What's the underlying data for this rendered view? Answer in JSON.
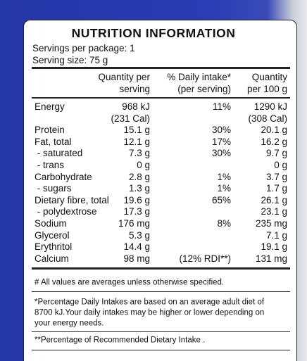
{
  "header": {
    "title": "NUTRITION INFORMATION",
    "servings_per_package": "Servings per package: 1",
    "serving_size": "Serving size: 75 g"
  },
  "table": {
    "columns": [
      [
        "Quantity per",
        "serving"
      ],
      [
        "% Daily intake*",
        "(per serving)"
      ],
      [
        "Quantity",
        "per 100 g"
      ]
    ],
    "rows": [
      {
        "name": "Energy",
        "serving": [
          "968 kJ",
          "(231 Cal)"
        ],
        "daily": "11%",
        "per100": [
          "1290 kJ",
          "(308 Cal)"
        ]
      },
      {
        "name": "Protein",
        "serving": [
          "15.1 g"
        ],
        "daily": "30%",
        "per100": [
          "20.1 g"
        ]
      },
      {
        "name": "Fat, total",
        "serving": [
          "12.1 g"
        ],
        "daily": "17%",
        "per100": [
          "16.2 g"
        ]
      },
      {
        "name": " - saturated",
        "serving": [
          "7.3 g"
        ],
        "daily": "30%",
        "per100": [
          "9.7 g"
        ]
      },
      {
        "name": " - trans",
        "serving": [
          "0 g"
        ],
        "per100": [
          "0 g"
        ]
      },
      {
        "name": "Carbohydrate",
        "serving": [
          "2.8 g"
        ],
        "daily": "1%",
        "per100": [
          "3.7 g"
        ]
      },
      {
        "name": " - sugars",
        "serving": [
          "1.3 g"
        ],
        "daily": "1%",
        "per100": [
          "1.7 g"
        ]
      },
      {
        "name": "Dietary fibre, total",
        "serving": [
          "19.6 g"
        ],
        "daily": "65%",
        "per100": [
          "26.1 g"
        ]
      },
      {
        "name": " - polydextrose",
        "serving": [
          "17.3 g"
        ],
        "per100": [
          "23.1 g"
        ]
      },
      {
        "name": "Sodium",
        "serving": [
          "176 mg"
        ],
        "daily": "8%",
        "per100": [
          "235 mg"
        ]
      },
      {
        "name": "Glycerol",
        "serving": [
          "5.3 g"
        ],
        "per100": [
          "7.1 g"
        ]
      },
      {
        "name": "Erythritol",
        "serving": [
          "14.4 g"
        ],
        "per100": [
          "19.1 g"
        ]
      },
      {
        "name": "Calcium",
        "serving": [
          "98 mg"
        ],
        "daily": "(12% RDI**)",
        "per100": [
          "131 mg"
        ]
      }
    ]
  },
  "footnotes": [
    [
      "# All values are averages unless otherwise specified."
    ],
    [
      "*Percentage Daily Intakes are based on an average adult diet of",
      "8700 kJ.Your daily intakes may be higher or lower depending on",
      "your energy needs."
    ],
    [
      "**Percentage of Recommended Dietary Intake ."
    ]
  ]
}
